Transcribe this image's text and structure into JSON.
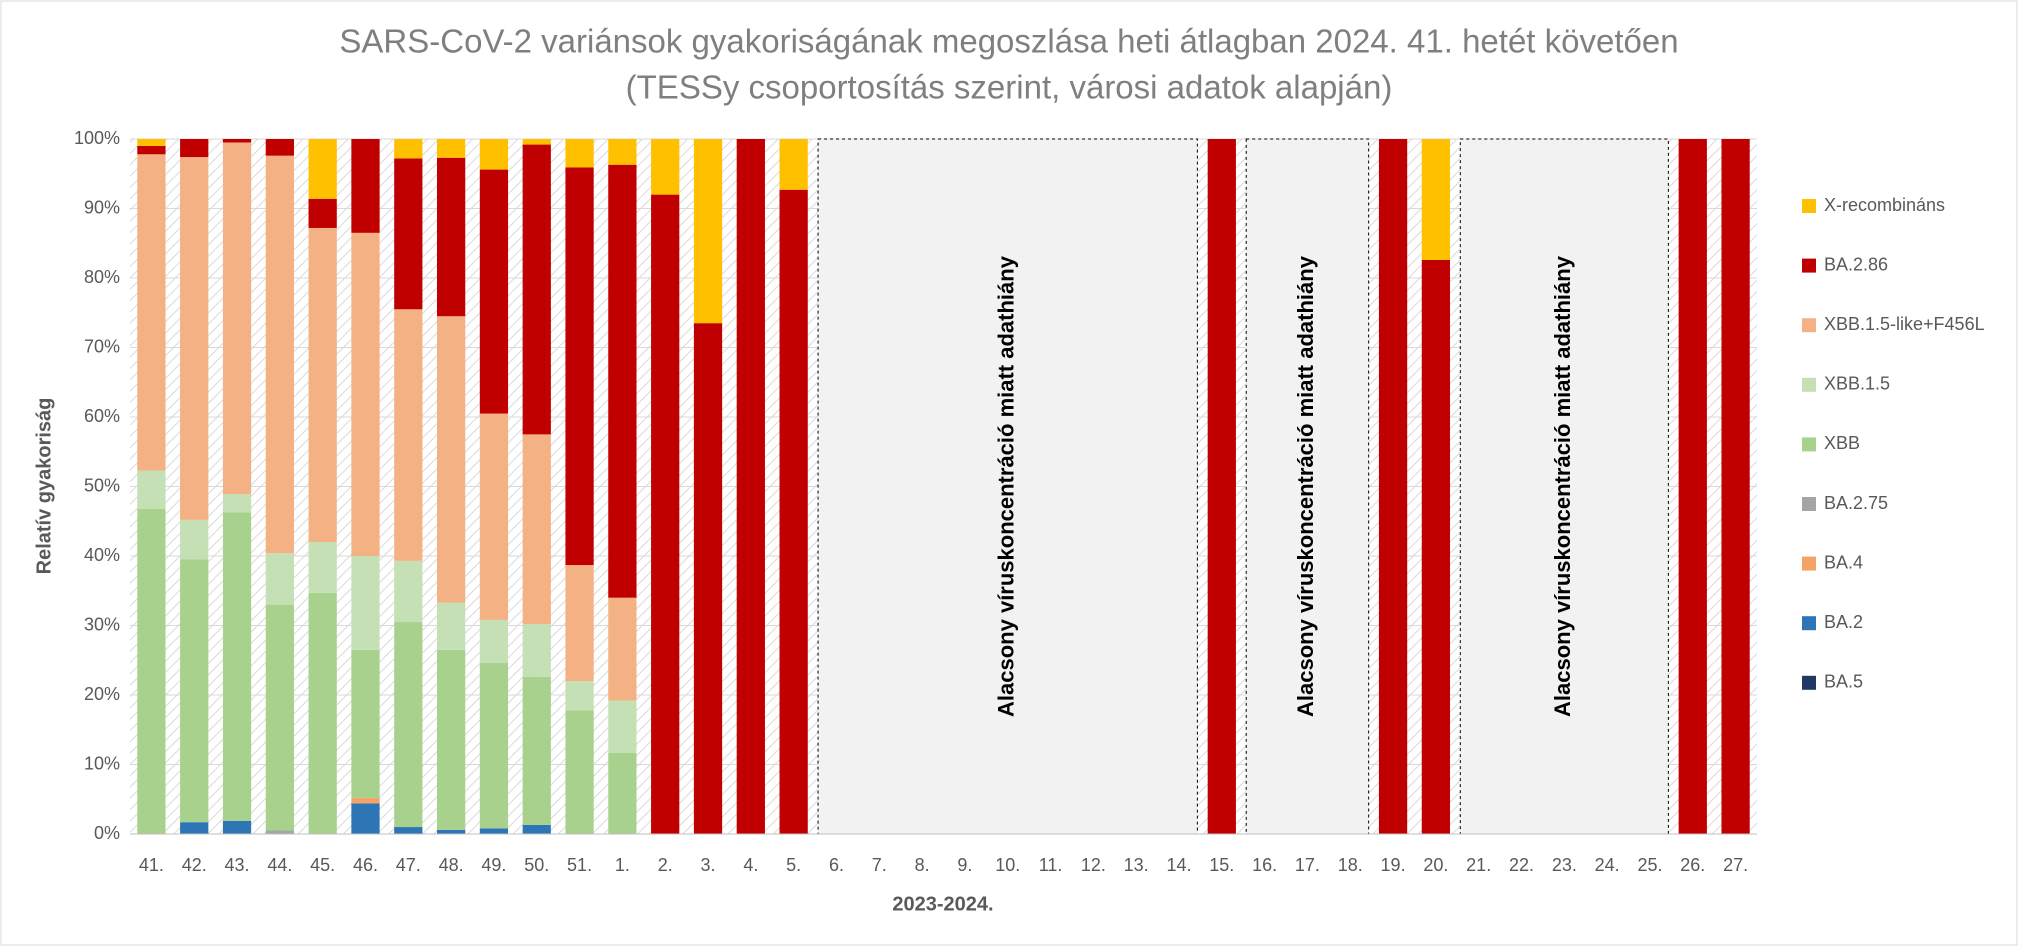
{
  "chart_data": {
    "type": "stacked_bar",
    "title": "SARS-CoV-2 variánsok gyakoriságának megoszlása heti átlagban 2024. 41. hetét követően",
    "subtitle": "(TESSy csoportosítás szerint, városi adatok alapján)",
    "x_label": "2023-2024.",
    "y_label": "Relatív gyakoriság",
    "categories": [
      "41.",
      "42.",
      "43.",
      "44.",
      "45.",
      "46.",
      "47.",
      "48.",
      "49.",
      "50.",
      "51.",
      "1.",
      "2.",
      "3.",
      "4.",
      "5.",
      "6.",
      "7.",
      "8.",
      "9.",
      "10.",
      "11.",
      "12.",
      "13.",
      "14.",
      "15.",
      "16.",
      "17.",
      "18.",
      "19.",
      "20.",
      "21.",
      "22.",
      "23.",
      "24.",
      "25.",
      "26.",
      "27."
    ],
    "ylim": [
      0,
      100
    ],
    "yticks": [
      {
        "value": 0,
        "label": "0%"
      },
      {
        "value": 10,
        "label": "10%"
      },
      {
        "value": 20,
        "label": "20%"
      },
      {
        "value": 30,
        "label": "30%"
      },
      {
        "value": 40,
        "label": "40%"
      },
      {
        "value": 50,
        "label": "50%"
      },
      {
        "value": 60,
        "label": "60%"
      },
      {
        "value": 70,
        "label": "70%"
      },
      {
        "value": 80,
        "label": "80%"
      },
      {
        "value": 90,
        "label": "90%"
      },
      {
        "value": 100,
        "label": "100%"
      }
    ],
    "grid": true,
    "legend": "right",
    "annotations": [
      "Alacsony víruskoncentráció miatt adathiány",
      "Alacsony víruskoncentráció miatt adathiány",
      "Alacsony víruskoncentráció miatt adathiány"
    ],
    "series": [
      {
        "name": "BA.5",
        "color": "#1f3864",
        "values": [
          0,
          0,
          0,
          0,
          0,
          0,
          0,
          0,
          0,
          0,
          0,
          0,
          0,
          0,
          0,
          0,
          null,
          null,
          null,
          null,
          null,
          null,
          null,
          null,
          null,
          0,
          null,
          null,
          null,
          0,
          0,
          null,
          null,
          null,
          null,
          null,
          0,
          0
        ]
      },
      {
        "name": "BA.2",
        "color": "#2e75b6",
        "values": [
          0,
          1.7,
          1.9,
          0,
          0,
          4.4,
          1.0,
          0.6,
          0.8,
          1.3,
          0,
          0,
          0,
          0,
          0,
          0,
          null,
          null,
          null,
          null,
          null,
          null,
          null,
          null,
          null,
          0,
          null,
          null,
          null,
          0,
          0,
          null,
          null,
          null,
          null,
          null,
          0,
          0
        ]
      },
      {
        "name": "BA.4",
        "color": "#f4a266",
        "values": [
          0,
          0,
          0,
          0,
          0,
          0.8,
          0,
          0,
          0,
          0,
          0,
          0,
          0,
          0,
          0,
          0,
          null,
          null,
          null,
          null,
          null,
          null,
          null,
          null,
          null,
          0,
          null,
          null,
          null,
          0,
          0,
          null,
          null,
          null,
          null,
          null,
          0,
          0
        ]
      },
      {
        "name": "BA.2.75",
        "color": "#a5a5a5",
        "values": [
          0,
          0,
          0,
          0.5,
          0,
          0,
          0,
          0,
          0,
          0,
          0,
          0,
          0,
          0,
          0,
          0,
          null,
          null,
          null,
          null,
          null,
          null,
          null,
          null,
          null,
          0,
          null,
          null,
          null,
          0,
          0,
          null,
          null,
          null,
          null,
          null,
          0,
          0
        ]
      },
      {
        "name": "XBB",
        "color": "#a9d18e",
        "values": [
          46.8,
          37.8,
          44.4,
          32.5,
          34.7,
          21.3,
          29.5,
          25.9,
          23.8,
          21.3,
          17.8,
          11.7,
          0,
          0,
          0,
          0,
          null,
          null,
          null,
          null,
          null,
          null,
          null,
          null,
          null,
          0,
          null,
          null,
          null,
          0,
          0,
          null,
          null,
          null,
          null,
          null,
          0,
          0
        ]
      },
      {
        "name": "XBB.1.5",
        "color": "#c5e0b4",
        "values": [
          5.5,
          5.7,
          2.6,
          7.4,
          7.3,
          13.5,
          8.8,
          6.8,
          6.2,
          7.6,
          4.2,
          7.5,
          0,
          0,
          0,
          0,
          null,
          null,
          null,
          null,
          null,
          null,
          null,
          null,
          null,
          0,
          null,
          null,
          null,
          0,
          0,
          null,
          null,
          null,
          null,
          null,
          0,
          0
        ]
      },
      {
        "name": "XBB.1.5-like+F456L",
        "color": "#f4b183",
        "values": [
          45.5,
          52.2,
          50.6,
          57.2,
          45.2,
          46.5,
          36.2,
          41.2,
          29.7,
          27.3,
          16.7,
          14.8,
          0,
          0,
          0,
          0,
          null,
          null,
          null,
          null,
          null,
          null,
          null,
          null,
          null,
          0,
          null,
          null,
          null,
          0,
          0,
          null,
          null,
          null,
          null,
          null,
          0,
          0
        ]
      },
      {
        "name": "BA.2.86",
        "color": "#c00000",
        "values": [
          1.2,
          2.6,
          0.5,
          2.4,
          4.2,
          13.5,
          21.7,
          22.8,
          35.1,
          41.7,
          57.2,
          62.3,
          92,
          73.5,
          100,
          92.7,
          null,
          null,
          null,
          null,
          null,
          null,
          null,
          null,
          null,
          100,
          null,
          null,
          null,
          100,
          82.6,
          null,
          null,
          null,
          null,
          null,
          100,
          100
        ]
      },
      {
        "name": "X-recombináns",
        "color": "#ffc000",
        "values": [
          1.0,
          0,
          0,
          0,
          8.6,
          0,
          2.8,
          2.7,
          4.4,
          0.8,
          4.1,
          3.7,
          8,
          26.5,
          0,
          7.3,
          null,
          null,
          null,
          null,
          null,
          null,
          null,
          null,
          null,
          0,
          null,
          null,
          null,
          0,
          17.4,
          null,
          null,
          null,
          null,
          null,
          0,
          0
        ]
      }
    ]
  }
}
